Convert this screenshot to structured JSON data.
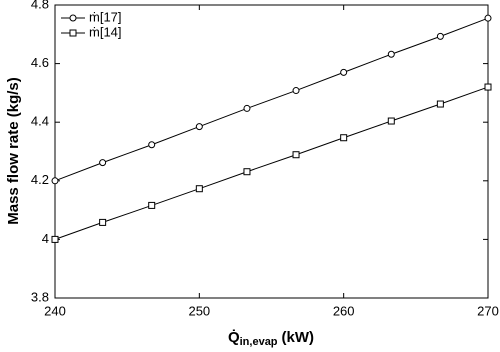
{
  "chart_data": {
    "type": "line",
    "x_label": "Q̇",
    "x_label_sub": "in,evap",
    "x_label_unit": "(kW)",
    "y_label": "Mass flow rate (kg/s)",
    "x": [
      240,
      243.3,
      246.7,
      250,
      253.3,
      256.7,
      260,
      263.3,
      266.7,
      270
    ],
    "series": [
      {
        "name": "ṁ[17]",
        "color": "#000000",
        "marker": "circle",
        "values": [
          4.2,
          4.262,
          4.323,
          4.385,
          4.447,
          4.508,
          4.57,
          4.632,
          4.693,
          4.755
        ]
      },
      {
        "name": "ṁ[14]",
        "color": "#000000",
        "marker": "square",
        "values": [
          4.0,
          4.058,
          4.116,
          4.173,
          4.231,
          4.289,
          4.347,
          4.404,
          4.462,
          4.52
        ]
      }
    ],
    "xlim": [
      240,
      270
    ],
    "xticks": [
      240,
      250,
      260,
      270
    ],
    "ylim": [
      3.8,
      4.8
    ],
    "yticks": [
      3.8,
      4,
      4.2,
      4.4,
      4.6,
      4.8
    ],
    "legend": "top-left"
  }
}
